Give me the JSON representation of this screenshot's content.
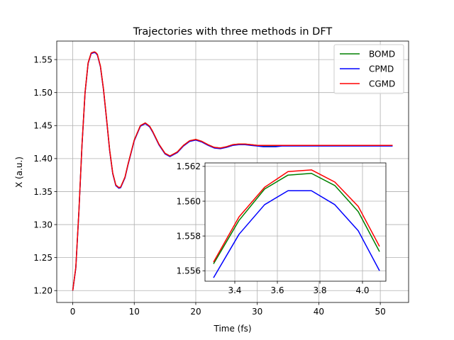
{
  "chart_data": [
    {
      "type": "line",
      "title": "Trajectories with three methods in DFT",
      "xlabel": "Time (fs)",
      "ylabel": "X (a.u.)",
      "xlim": [
        -2.6,
        54.6
      ],
      "ylim": [
        1.182,
        1.578
      ],
      "xticks": [
        0,
        10,
        20,
        30,
        40,
        50
      ],
      "xtick_labels": [
        "0",
        "10",
        "20",
        "30",
        "40",
        "50"
      ],
      "yticks": [
        1.2,
        1.25,
        1.3,
        1.35,
        1.4,
        1.45,
        1.5,
        1.55
      ],
      "ytick_labels": [
        "1.20",
        "1.25",
        "1.30",
        "1.35",
        "1.40",
        "1.45",
        "1.50",
        "1.55"
      ],
      "grid": true,
      "legend_position": "top-right",
      "colors": {
        "BOMD": "#008000",
        "CPMD": "#0000ff",
        "CGMD": "#ff0000"
      },
      "series": [
        {
          "name": "BOMD",
          "x": [
            0,
            0.5,
            1,
            1.5,
            2,
            2.5,
            3,
            3.5,
            3.7,
            4,
            4.5,
            5,
            5.5,
            6,
            6.5,
            7,
            7.5,
            7.8,
            8.5,
            9,
            10,
            11,
            11.8,
            12.5,
            13,
            14,
            15,
            15.8,
            17,
            18,
            19,
            20,
            21,
            22,
            23,
            24,
            25,
            26,
            27,
            28,
            29,
            30,
            31,
            32,
            33,
            34,
            35,
            36,
            37,
            38,
            39,
            40,
            42,
            44,
            46,
            48,
            50,
            52
          ],
          "values": [
            1.2,
            1.235,
            1.32,
            1.42,
            1.5,
            1.545,
            1.56,
            1.5615,
            1.561,
            1.558,
            1.54,
            1.505,
            1.46,
            1.413,
            1.378,
            1.36,
            1.356,
            1.357,
            1.372,
            1.392,
            1.428,
            1.45,
            1.454,
            1.449,
            1.441,
            1.422,
            1.408,
            1.404,
            1.41,
            1.42,
            1.427,
            1.429,
            1.426,
            1.421,
            1.417,
            1.416,
            1.418,
            1.421,
            1.422,
            1.422,
            1.421,
            1.42,
            1.419,
            1.419,
            1.419,
            1.42,
            1.42,
            1.42,
            1.42,
            1.42,
            1.42,
            1.42,
            1.42,
            1.42,
            1.42,
            1.42,
            1.42,
            1.42
          ]
        },
        {
          "name": "CPMD",
          "x": [
            0,
            0.5,
            1,
            1.5,
            2,
            2.5,
            3,
            3.5,
            3.7,
            4,
            4.5,
            5,
            5.5,
            6,
            6.5,
            7,
            7.5,
            7.8,
            8.5,
            9,
            10,
            11,
            11.8,
            12.5,
            13,
            14,
            15,
            15.8,
            17,
            18,
            19,
            20,
            21,
            22,
            23,
            24,
            25,
            26,
            27,
            28,
            29,
            30,
            31,
            32,
            33,
            34,
            35,
            36,
            37,
            38,
            39,
            40,
            42,
            44,
            46,
            48,
            50,
            52
          ],
          "values": [
            1.2,
            1.234,
            1.319,
            1.419,
            1.499,
            1.544,
            1.559,
            1.5606,
            1.56,
            1.557,
            1.539,
            1.504,
            1.459,
            1.412,
            1.377,
            1.359,
            1.355,
            1.356,
            1.371,
            1.391,
            1.427,
            1.449,
            1.453,
            1.448,
            1.44,
            1.421,
            1.407,
            1.403,
            1.409,
            1.419,
            1.426,
            1.428,
            1.425,
            1.42,
            1.416,
            1.415,
            1.417,
            1.42,
            1.421,
            1.421,
            1.42,
            1.419,
            1.418,
            1.418,
            1.418,
            1.419,
            1.419,
            1.419,
            1.419,
            1.419,
            1.419,
            1.419,
            1.419,
            1.419,
            1.419,
            1.419,
            1.419,
            1.419
          ]
        },
        {
          "name": "CGMD",
          "x": [
            0,
            0.5,
            1,
            1.5,
            2,
            2.5,
            3,
            3.5,
            3.7,
            4,
            4.5,
            5,
            5.5,
            6,
            6.5,
            7,
            7.5,
            7.8,
            8.5,
            9,
            10,
            11,
            11.8,
            12.5,
            13,
            14,
            15,
            15.8,
            17,
            18,
            19,
            20,
            21,
            22,
            23,
            24,
            25,
            26,
            27,
            28,
            29,
            30,
            31,
            32,
            33,
            34,
            35,
            36,
            37,
            38,
            39,
            40,
            42,
            44,
            46,
            48,
            50,
            52
          ],
          "values": [
            1.2,
            1.235,
            1.32,
            1.42,
            1.5,
            1.545,
            1.56,
            1.5617,
            1.561,
            1.558,
            1.54,
            1.505,
            1.46,
            1.413,
            1.378,
            1.36,
            1.356,
            1.357,
            1.372,
            1.392,
            1.428,
            1.45,
            1.454,
            1.449,
            1.441,
            1.422,
            1.408,
            1.404,
            1.41,
            1.42,
            1.427,
            1.429,
            1.426,
            1.421,
            1.417,
            1.416,
            1.418,
            1.421,
            1.422,
            1.422,
            1.421,
            1.42,
            1.42,
            1.42,
            1.42,
            1.42,
            1.42,
            1.42,
            1.42,
            1.42,
            1.42,
            1.42,
            1.42,
            1.42,
            1.42,
            1.42,
            1.42,
            1.42
          ]
        }
      ]
    },
    {
      "type": "line",
      "title": "",
      "xlabel": "",
      "ylabel": "",
      "xlim": [
        3.26,
        4.11
      ],
      "ylim": [
        1.5554,
        1.5622
      ],
      "xticks": [
        3.4,
        3.6,
        3.8,
        4.0
      ],
      "xtick_labels": [
        "3.4",
        "3.6",
        "3.8",
        "4.0"
      ],
      "yticks": [
        1.556,
        1.558,
        1.56,
        1.562
      ],
      "ytick_labels": [
        "1.556",
        "1.558",
        "1.560",
        "1.562"
      ],
      "grid": true,
      "colors": {
        "BOMD": "#008000",
        "CPMD": "#0000ff",
        "CGMD": "#ff0000"
      },
      "series": [
        {
          "name": "BOMD",
          "x": [
            3.3,
            3.42,
            3.54,
            3.65,
            3.76,
            3.87,
            3.98,
            4.08
          ],
          "values": [
            1.5564,
            1.5589,
            1.5607,
            1.5615,
            1.5616,
            1.5609,
            1.5594,
            1.5571
          ]
        },
        {
          "name": "CPMD",
          "x": [
            3.3,
            3.42,
            3.54,
            3.65,
            3.76,
            3.87,
            3.98,
            4.08
          ],
          "values": [
            1.5556,
            1.5581,
            1.5598,
            1.5606,
            1.5606,
            1.5598,
            1.5583,
            1.556
          ]
        },
        {
          "name": "CGMD",
          "x": [
            3.3,
            3.42,
            3.54,
            3.65,
            3.76,
            3.87,
            3.98,
            4.08
          ],
          "values": [
            1.5565,
            1.5591,
            1.5608,
            1.5617,
            1.5618,
            1.5611,
            1.5597,
            1.5574
          ]
        }
      ]
    }
  ]
}
